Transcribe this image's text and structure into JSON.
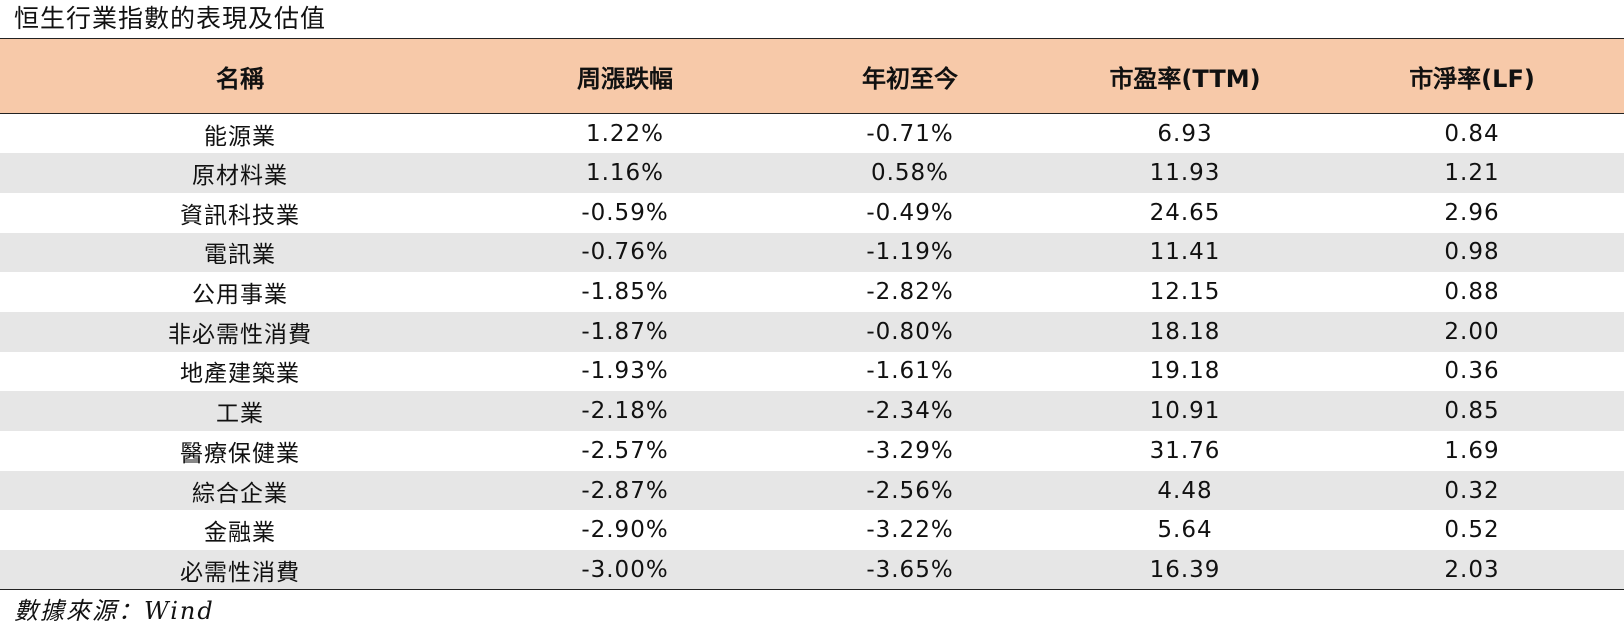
{
  "title": "恒生行業指數的表現及估值",
  "table": {
    "headers": [
      "名稱",
      "周漲跌幅",
      "年初至今",
      "市盈率(TTM)",
      "市淨率(LF)"
    ],
    "rows": [
      [
        "能源業",
        "1.22%",
        "-0.71%",
        "6.93",
        "0.84"
      ],
      [
        "原材料業",
        "1.16%",
        "0.58%",
        "11.93",
        "1.21"
      ],
      [
        "資訊科技業",
        "-0.59%",
        "-0.49%",
        "24.65",
        "2.96"
      ],
      [
        "電訊業",
        "-0.76%",
        "-1.19%",
        "11.41",
        "0.98"
      ],
      [
        "公用事業",
        "-1.85%",
        "-2.82%",
        "12.15",
        "0.88"
      ],
      [
        "非必需性消費",
        "-1.87%",
        "-0.80%",
        "18.18",
        "2.00"
      ],
      [
        "地產建築業",
        "-1.93%",
        "-1.61%",
        "19.18",
        "0.36"
      ],
      [
        "工業",
        "-2.18%",
        "-2.34%",
        "10.91",
        "0.85"
      ],
      [
        "醫療保健業",
        "-2.57%",
        "-3.29%",
        "31.76",
        "1.69"
      ],
      [
        "綜合企業",
        "-2.87%",
        "-2.56%",
        "4.48",
        "0.32"
      ],
      [
        "金融業",
        "-2.90%",
        "-3.22%",
        "5.64",
        "0.52"
      ],
      [
        "必需性消費",
        "-3.00%",
        "-3.65%",
        "16.39",
        "2.03"
      ]
    ]
  },
  "source": "數據來源：Wind",
  "colors": {
    "header_bg": "#f7c9a9",
    "alt_row_bg": "#e6e6e6"
  }
}
